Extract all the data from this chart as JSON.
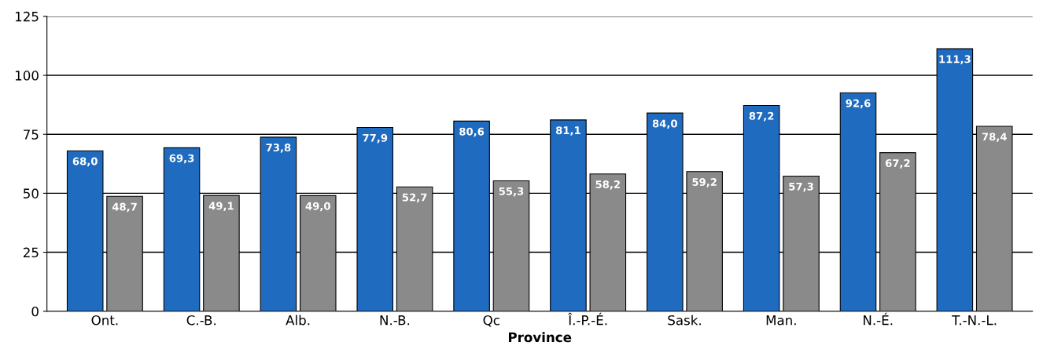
{
  "chart_data": {
    "type": "bar",
    "xlabel": "Province",
    "categories": [
      "Ont.",
      "C.-B.",
      "Alb.",
      "N.-B.",
      "Qc",
      "Î.-P.-É.",
      "Sask.",
      "Man.",
      "N.-É.",
      "T.-N.-L."
    ],
    "series": [
      {
        "color": "#1f6bbf",
        "values": [
          68.0,
          69.3,
          73.8,
          77.9,
          80.6,
          81.1,
          84.0,
          87.2,
          92.6,
          111.3
        ],
        "value_labels": [
          "68,0",
          "69,3",
          "73,8",
          "77,9",
          "80,6",
          "81,1",
          "84,0",
          "87,2",
          "92,6",
          "111,3"
        ]
      },
      {
        "color": "#8a8a8a",
        "values": [
          48.7,
          49.1,
          49.0,
          52.7,
          55.3,
          58.2,
          59.2,
          57.3,
          67.2,
          78.4
        ],
        "value_labels": [
          "48,7",
          "49,1",
          "49,0",
          "52,7",
          "55,3",
          "58,2",
          "59,2",
          "57,3",
          "67,2",
          "78,4"
        ]
      }
    ],
    "ylim": [
      0,
      125
    ],
    "yticks": [
      0,
      25,
      50,
      75,
      100,
      125
    ],
    "grid": "y"
  }
}
